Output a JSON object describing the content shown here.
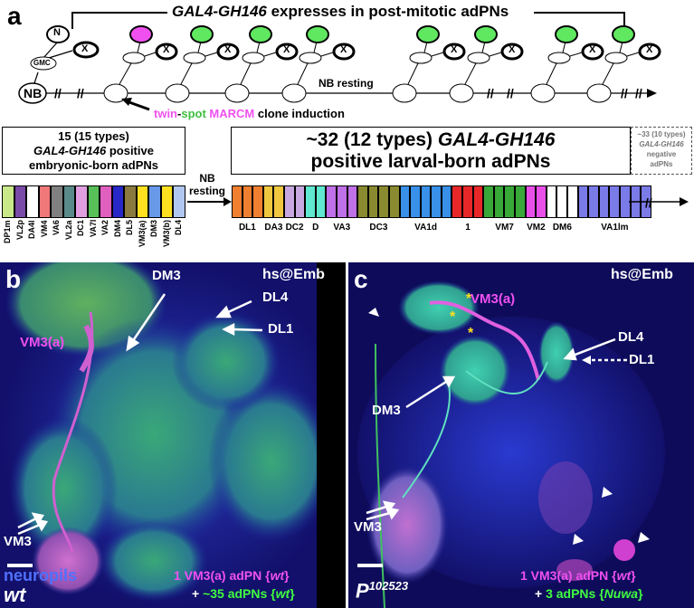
{
  "panel_a": {
    "letter": "a",
    "top_header_prefix": "GAL4-GH146",
    "top_header_suffix": " expresses in post-mitotic adPNs",
    "nb_label": "NB",
    "gmc_label": "GMC",
    "n_label": "N",
    "x_label": "X",
    "resting_label": "NB resting",
    "clone_twin": "twin",
    "clone_dash": "-",
    "clone_spot": "spot",
    "clone_marcm": "MARCM",
    "clone_rest": " clone induction",
    "embryonic_box_line1": "15 (15 types)",
    "embryonic_box_line2_italic": "GAL4-GH146",
    "embryonic_box_line2_rest": " positive",
    "embryonic_box_line3": "embryonic-born adPNs",
    "larval_box_line1_prefix": "~32 (12 types) ",
    "larval_box_line1_italic": "GAL4-GH146",
    "larval_box_line2": "positive larval-born adPNs",
    "negative_box_line1": "~33 (10 types)",
    "negative_box_line2": "GAL4-GH146",
    "negative_box_line3": "negative",
    "negative_box_line4": "adPNs",
    "nb_resting_line1": "NB",
    "nb_resting_line2": "resting",
    "embryonic_labels": [
      "DP1m",
      "VL2p",
      "DA4l",
      "VM4",
      "VA6",
      "VL2a",
      "DC1",
      "VA7l",
      "VA2",
      "DM4",
      "DL5",
      "VM3(a)",
      "DM3",
      "VM3(b)",
      "DL4"
    ],
    "embryonic_colors": [
      "#c8e88a",
      "#7a4aa8",
      "#ffffff",
      "#f07878",
      "#808080",
      "#5a8a8a",
      "#e0a0e0",
      "#58c058",
      "#e060c0",
      "#2828c8",
      "#8a7a40",
      "#ffe020",
      "#6898e8",
      "#ffe020",
      "#b0c8f0"
    ],
    "larval_labels": [
      "DL1",
      "DA3",
      "DC2",
      "D",
      "VA3",
      "DC3",
      "VA1d",
      "1",
      "VM7",
      "VM2",
      "DM6",
      "VA1lm"
    ],
    "larval_colors": [
      "#f08030",
      "#f0c840",
      "#c8a8e0",
      "#60e8d0",
      "#c070e8",
      "#8a8a30",
      "#3890e8",
      "#e82828",
      "#38a838",
      "#e850e8",
      "#ffffff",
      "#7a7ae8"
    ],
    "larval_counts": [
      3,
      2,
      2,
      2,
      3,
      4,
      5,
      3,
      4,
      2,
      3,
      7
    ]
  },
  "panel_b": {
    "letter": "b",
    "stage": "hs@Emb",
    "labels": {
      "dm3": "DM3",
      "dl4": "DL4",
      "dl1": "DL1",
      "vm3a": "VM3(a)",
      "vm3": "VM3"
    },
    "neuropils": "neuropils",
    "genotype": "wt",
    "caption_line1_prefix": "1 VM3(a) adPN {",
    "caption_line1_italic": "wt",
    "caption_line1_suffix": "}",
    "caption_line2_plus": "+ ",
    "caption_line2_prefix": "~35 adPNs {",
    "caption_line2_italic": "wt",
    "caption_line2_suffix": "}"
  },
  "panel_c": {
    "letter": "c",
    "stage": "hs@Emb",
    "labels": {
      "dm3": "DM3",
      "dl4": "DL4",
      "dl1": "DL1",
      "vm3a": "VM3(a)",
      "vm3": "VM3",
      "star": "*"
    },
    "genotype_base": "P",
    "genotype_super": "102523",
    "caption_line1_prefix": "1 VM3(a) adPN {",
    "caption_line1_italic": "wt",
    "caption_line1_suffix": "}",
    "caption_line2_plus": "+ ",
    "caption_line2_prefix": "3 adPNs {",
    "caption_line2_italic": "Nuwa",
    "caption_line2_suffix": "}"
  }
}
